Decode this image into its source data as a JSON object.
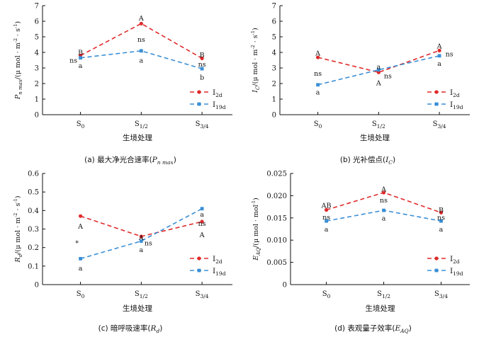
{
  "colors": {
    "I2d": "#e02b2b",
    "I19d": "#3a8fd6",
    "axis": "#111111"
  },
  "chart_data": [
    {
      "id": "pmax",
      "type": "line",
      "categories": [
        "S0",
        "S1/2",
        "S3/4"
      ],
      "ylim": [
        0,
        7
      ],
      "yticks": [
        0,
        1,
        2,
        3,
        4,
        5,
        6,
        7
      ],
      "ytick_labels": [
        "0",
        "1",
        "2",
        "3",
        "4",
        "5",
        "6",
        "7"
      ],
      "xlabel": "生境处理",
      "ylabel_parts": [
        {
          "text": "P",
          "sub": "",
          "italic": true
        },
        {
          "text": "",
          "sub": "n max",
          "italic": true
        },
        {
          "text": "/(μ mol · m",
          "sub": "",
          "italic": false
        },
        {
          "text": "",
          "sup": "-2",
          "italic": false
        },
        {
          "text": " · s",
          "sub": "",
          "italic": false
        },
        {
          "text": "",
          "sup": "-1",
          "italic": false
        },
        {
          "text": ")",
          "sub": "",
          "italic": false
        }
      ],
      "series": [
        {
          "name": "I",
          "sub": "2d",
          "values": [
            3.8,
            5.85,
            3.62
          ]
        },
        {
          "name": "I",
          "sub": "19d",
          "values": [
            3.65,
            4.1,
            2.95
          ]
        }
      ],
      "annotations": [
        {
          "text": "B",
          "x": 0,
          "y": 4.0
        },
        {
          "text": "ns",
          "x": 0,
          "y": 3.5,
          "dx": -10
        },
        {
          "text": "a",
          "x": 0,
          "y": 3.15
        },
        {
          "text": "A",
          "x": 1,
          "y": 6.2
        },
        {
          "text": "ns",
          "x": 1,
          "y": 4.85
        },
        {
          "text": "a",
          "x": 1,
          "y": 3.5
        },
        {
          "text": "B",
          "x": 2,
          "y": 3.85
        },
        {
          "text": "ns",
          "x": 2,
          "y": 3.25
        },
        {
          "text": "b",
          "x": 2,
          "y": 2.4
        }
      ],
      "legend": "right",
      "caption": {
        "prefix": "(a)  最大净光合速率(",
        "var": "P",
        "sub": "n max",
        "suffix": ")"
      }
    },
    {
      "id": "ic",
      "type": "line",
      "categories": [
        "S0",
        "S1/2",
        "S3/4"
      ],
      "ylim": [
        0,
        7
      ],
      "yticks": [
        0,
        1,
        2,
        3,
        4,
        5,
        6,
        7
      ],
      "ytick_labels": [
        "0",
        "1",
        "2",
        "3",
        "4",
        "5",
        "6",
        "7"
      ],
      "xlabel": "生境处理",
      "ylabel_parts": [
        {
          "text": "I",
          "sub": "",
          "italic": true
        },
        {
          "text": "",
          "sub": "C",
          "italic": true
        },
        {
          "text": "/(μ mol · m",
          "sub": "",
          "italic": false
        },
        {
          "text": "",
          "sup": "-2",
          "italic": false
        },
        {
          "text": " · s",
          "sub": "",
          "italic": false
        },
        {
          "text": "",
          "sup": "-1",
          "italic": false
        },
        {
          "text": ")",
          "sub": "",
          "italic": false
        }
      ],
      "series": [
        {
          "name": "I",
          "sub": "2d",
          "values": [
            3.68,
            2.72,
            4.12
          ]
        },
        {
          "name": "I",
          "sub": "19d",
          "values": [
            1.92,
            2.88,
            3.78
          ]
        }
      ],
      "annotations": [
        {
          "text": "A",
          "x": 0,
          "y": 3.95
        },
        {
          "text": "ns",
          "x": 0,
          "y": 2.65
        },
        {
          "text": "a",
          "x": 0,
          "y": 1.45
        },
        {
          "text": "a",
          "x": 1,
          "y": 3.1
        },
        {
          "text": "ns",
          "x": 1,
          "y": 2.5,
          "dx": 13
        },
        {
          "text": "A",
          "x": 1,
          "y": 2.05
        },
        {
          "text": "A",
          "x": 2,
          "y": 4.4
        },
        {
          "text": "ns",
          "x": 2,
          "y": 3.9,
          "dx": 14
        },
        {
          "text": "a",
          "x": 2,
          "y": 3.3
        }
      ],
      "legend": "right",
      "caption": {
        "prefix": "(b)  光补偿点(",
        "var": "I",
        "sub": "C",
        "suffix": ")"
      }
    },
    {
      "id": "rd",
      "type": "line",
      "categories": [
        "S0",
        "S1/2",
        "S3/4"
      ],
      "ylim": [
        0,
        0.6
      ],
      "yticks": [
        0,
        0.1,
        0.2,
        0.3,
        0.4,
        0.5,
        0.6
      ],
      "ytick_labels": [
        "0",
        "0.1",
        "0.2",
        "0.3",
        "0.4",
        "0.5",
        "0.6"
      ],
      "xlabel": "生境处理",
      "ylabel_parts": [
        {
          "text": "R",
          "sub": "",
          "italic": true
        },
        {
          "text": "",
          "sub": "d",
          "italic": true
        },
        {
          "text": "/(μ mol · m",
          "sub": "",
          "italic": false
        },
        {
          "text": "",
          "sup": "-2",
          "italic": false
        },
        {
          "text": " · s",
          "sub": "",
          "italic": false
        },
        {
          "text": "",
          "sup": "-1",
          "italic": false
        },
        {
          "text": ")",
          "sub": "",
          "italic": false
        }
      ],
      "series": [
        {
          "name": "I",
          "sub": "2d",
          "values": [
            0.37,
            0.26,
            0.34
          ]
        },
        {
          "name": "I",
          "sub": "19d",
          "values": [
            0.14,
            0.235,
            0.41
          ]
        }
      ],
      "annotations": [
        {
          "text": "A",
          "x": 0,
          "y": 0.315
        },
        {
          "text": "*",
          "x": 0,
          "y": 0.225,
          "dx": -5
        },
        {
          "text": "a",
          "x": 0,
          "y": 0.09
        },
        {
          "text": "A",
          "x": 1,
          "y": 0.255
        },
        {
          "text": "ns",
          "x": 1,
          "y": 0.225,
          "dx": 10
        },
        {
          "text": "a",
          "x": 1,
          "y": 0.19
        },
        {
          "text": "a",
          "x": 2,
          "y": 0.38
        },
        {
          "text": "ns",
          "x": 2,
          "y": 0.33
        },
        {
          "text": "A",
          "x": 2,
          "y": 0.27
        }
      ],
      "legend": "bottom-right",
      "caption": {
        "prefix": "(c)  暗呼吸速率(",
        "var": "R",
        "sub": "d",
        "suffix": ")"
      }
    },
    {
      "id": "eaq",
      "type": "line",
      "categories": [
        "S0",
        "S1/2",
        "S3/4"
      ],
      "ylim": [
        0,
        0.025
      ],
      "yticks": [
        0,
        0.005,
        0.01,
        0.015,
        0.02,
        0.025
      ],
      "ytick_labels": [
        "0",
        "0.005",
        "0.010",
        "0.015",
        "0.020",
        "0.025"
      ],
      "xlabel": "生境处理",
      "ylabel_parts": [
        {
          "text": "E",
          "sub": "",
          "italic": true
        },
        {
          "text": "",
          "sub": "AQ",
          "italic": true
        },
        {
          "text": "/(μ mol · mol",
          "sub": "",
          "italic": false
        },
        {
          "text": "",
          "sup": "-1",
          "italic": false
        },
        {
          "text": ")",
          "sub": "",
          "italic": false
        }
      ],
      "series": [
        {
          "name": "I",
          "sub": "2d",
          "values": [
            0.0168,
            0.0207,
            0.0162
          ]
        },
        {
          "name": "I",
          "sub": "19d",
          "values": [
            0.0143,
            0.0167,
            0.0143
          ]
        }
      ],
      "annotations": [
        {
          "text": "AB",
          "x": 0,
          "y": 0.0178
        },
        {
          "text": "ns",
          "x": 0,
          "y": 0.0152
        },
        {
          "text": "a",
          "x": 0,
          "y": 0.0125
        },
        {
          "text": "A",
          "x": 1,
          "y": 0.0215
        },
        {
          "text": "ns",
          "x": 1,
          "y": 0.019
        },
        {
          "text": "a",
          "x": 1,
          "y": 0.015
        },
        {
          "text": "B",
          "x": 2,
          "y": 0.0168
        },
        {
          "text": "ns",
          "x": 2,
          "y": 0.0151
        },
        {
          "text": "a",
          "x": 2,
          "y": 0.0125
        }
      ],
      "legend": "right",
      "caption": {
        "prefix": "(d)  表观量子效率(",
        "var": "E",
        "sub": "AQ",
        "suffix": ")"
      }
    }
  ]
}
